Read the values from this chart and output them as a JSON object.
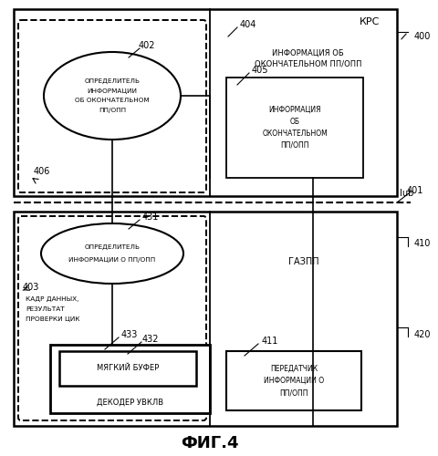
{
  "bg_color": "#ffffff",
  "fig_width": 4.8,
  "fig_height": 5.0,
  "dpi": 100,
  "title": "ФИГ.4",
  "krc_label": "КРС",
  "label_400": "400",
  "label_401": "401",
  "label_402": "402",
  "label_403": "403",
  "label_404": "404",
  "label_405": "405",
  "label_406": "406",
  "label_410": "410",
  "label_411": "411",
  "label_420": "420",
  "label_431": "431",
  "label_432": "432",
  "label_433": "433",
  "iub_label": "Iub",
  "gazpp_label": "ГАЗПП",
  "ellipse402_lines": [
    "ОПРЕДЕЛИТЕЛЬ",
    "ИНФОРМАЦИИ",
    "ОБ ОКОНЧАТЕЛЬНОМ",
    "ПП/ОПП"
  ],
  "ellipse431_lines": [
    "ОПРЕДЕЛИТЕЛЬ",
    "ИНФОРМАЦИИ О ПП/ОПП"
  ],
  "info404_lines": [
    "ИНФОРМАЦИЯ ОБ",
    "ОКОНЧАТЕЛЬНОМ ПП/ОПП"
  ],
  "info405_lines": [
    "ИНФОРМАЦИЯ",
    "ОБ",
    "ОКОНЧАТЕЛЬНОМ",
    "ПП/ОПП"
  ],
  "text403_lines": [
    "КАДР ДАННЫХ,",
    "РЕЗУЛЬТАТ",
    "ПРОВЕРКИ ЦИК"
  ],
  "softbuf_label": "МЯГКИЙ БУФЕР",
  "decoder_label": "ДЕКОДЕР УВКЛВ",
  "transmitter_lines": [
    "ПЕРЕДАТЧИК",
    "ИНФОРМАЦИИ О",
    "ПП/ОПП"
  ]
}
